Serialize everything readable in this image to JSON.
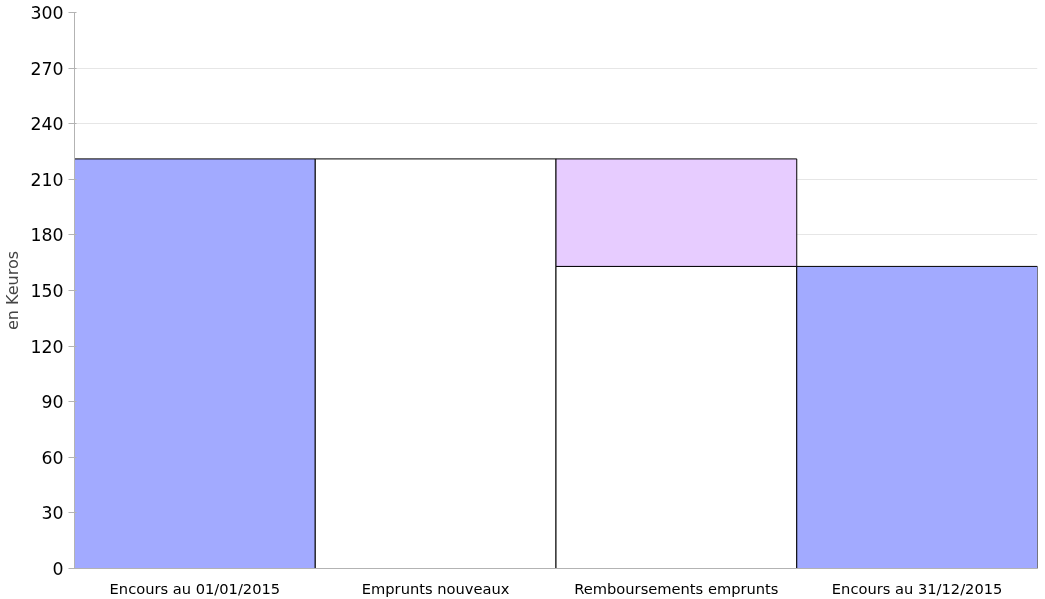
{
  "chart_data": {
    "type": "bar",
    "stacked": true,
    "ylabel": "en Keuros",
    "categories": [
      "Encours au 01/01/2015",
      "Emprunts nouveaux",
      "Remboursements emprunts",
      "Encours au 31/12/2015"
    ],
    "series": [
      {
        "colors": [
          "#a2aaff",
          "#ffffff",
          "#ffffff",
          "#a2aaff"
        ],
        "values": [
          221,
          221,
          163,
          163
        ]
      },
      {
        "color": "#e7ccff",
        "values": [
          null,
          null,
          58,
          null
        ]
      }
    ],
    "ylim": [
      0,
      300
    ],
    "yticks": [
      0,
      30,
      60,
      90,
      120,
      150,
      180,
      210,
      240,
      270,
      300
    ],
    "grid": "y"
  }
}
